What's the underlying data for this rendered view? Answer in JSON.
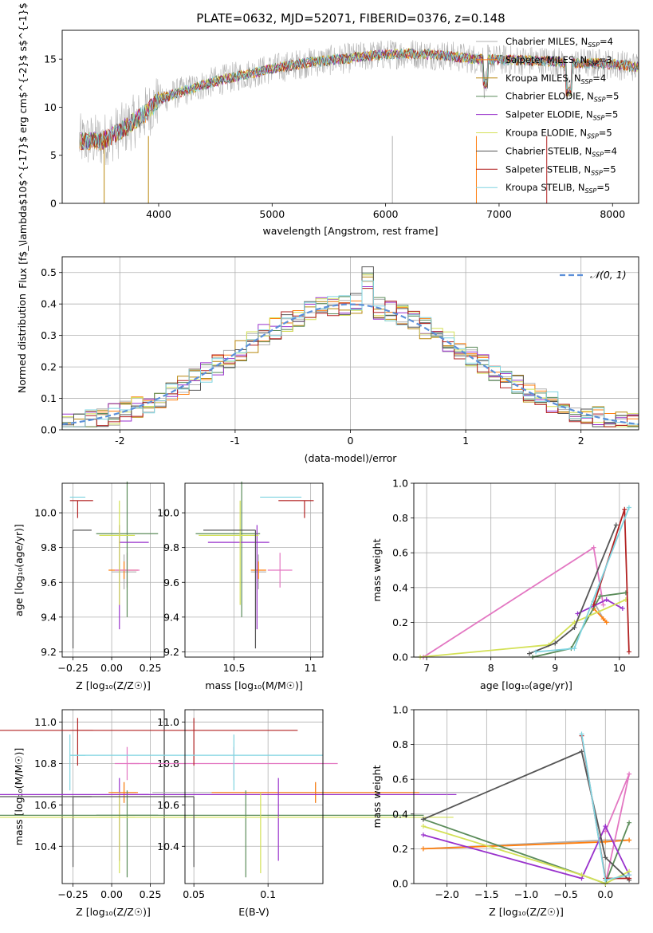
{
  "figure": {
    "title": "PLATE=0632, MJD=52071, FIBERID=0376, z=0.148"
  },
  "chart_data": [
    {
      "panel": "spectrum",
      "type": "line",
      "xlabel": "wavelength [Angstrom, rest frame]",
      "ylabel": "Flux [f$_\\lambda$10$^{-17}$ erg cm$^{-2}$ s$^{-1}$ A$^{-1}$]",
      "ylabel_parts": [
        "Flux [f",
        "λ",
        "10",
        "−17",
        " erg cm",
        "−2",
        " s",
        "−1",
        " A",
        "−1",
        "]"
      ],
      "xlim": [
        3150,
        8230
      ],
      "ylim": [
        0,
        18
      ],
      "xticks": [
        4000,
        5000,
        6000,
        7000,
        8000
      ],
      "yticks": [
        0,
        5,
        10,
        15
      ],
      "legend_position": "top-right",
      "series": [
        {
          "name": "Chabrier MILES, N_SSP=4",
          "label_main": "Chabrier MILES, N",
          "label_sub": "SSP",
          "label_tail": "=4",
          "color": "#b0b0b0"
        },
        {
          "name": "Salpeter MILES, N_SSP=3",
          "label_main": "Salpeter MILES, N",
          "label_sub": "SSP",
          "label_tail": "=3",
          "color": "#ff7f0e"
        },
        {
          "name": "Kroupa MILES, N_SSP=4",
          "label_main": "Kroupa MILES, N",
          "label_sub": "SSP",
          "label_tail": "=4",
          "color": "#b8860b"
        },
        {
          "name": "Chabrier ELODIE, N_SSP=5",
          "label_main": "Chabrier ELODIE, N",
          "label_sub": "SSP",
          "label_tail": "=5",
          "color": "#5b8c5a"
        },
        {
          "name": "Salpeter ELODIE, N_SSP=5",
          "label_main": "Salpeter ELODIE, N",
          "label_sub": "SSP",
          "label_tail": "=5",
          "color": "#9932cc"
        },
        {
          "name": "Kroupa ELODIE, N_SSP=5",
          "label_main": "Kroupa ELODIE, N",
          "label_sub": "SSP",
          "label_tail": "=5",
          "color": "#d4e157"
        },
        {
          "name": "Chabrier STELIB, N_SSP=4",
          "label_main": "Chabrier STELIB, N",
          "label_sub": "SSP",
          "label_tail": "=4",
          "color": "#555555"
        },
        {
          "name": "Salpeter STELIB, N_SSP=5",
          "label_main": "Salpeter STELIB, N",
          "label_sub": "SSP",
          "label_tail": "=5",
          "color": "#b22222"
        },
        {
          "name": "Kroupa STELIB, N_SSP=5",
          "label_main": "Kroupa STELIB, N",
          "label_sub": "SSP",
          "label_tail": "=5",
          "color": "#7fd4e0"
        }
      ],
      "continuum_x": [
        3300,
        3500,
        3700,
        3900,
        4000,
        4200,
        4500,
        4800,
        5000,
        5300,
        5600,
        5900,
        6200,
        6500,
        6800,
        7100,
        7400,
        7700,
        8000,
        8200
      ],
      "continuum_y": [
        6.5,
        6.5,
        7.8,
        9.5,
        10.8,
        11.6,
        12.7,
        13.5,
        14.0,
        14.6,
        15.0,
        15.4,
        15.6,
        15.4,
        15.0,
        14.9,
        14.8,
        14.6,
        14.5,
        14.2
      ],
      "data_x_range": [
        3300,
        8230
      ]
    },
    {
      "panel": "residuals",
      "type": "histogram",
      "xlabel": "(data-model)/error",
      "ylabel": "Normed distribution",
      "xlim": [
        -2.5,
        2.5
      ],
      "ylim": [
        0,
        0.55
      ],
      "xticks": [
        -2,
        -1,
        0,
        1,
        2
      ],
      "yticks": [
        0.0,
        0.1,
        0.2,
        0.3,
        0.4,
        0.5
      ],
      "legend_position": "top-right",
      "gaussian_label": "𝒩(0, 1)",
      "gaussian_color": "#5b8fd9",
      "bin_edges_start": -2.5,
      "bin_width": 0.1
    },
    {
      "panel": "age-Z",
      "type": "errorbar",
      "xlabel": "Z [log₁₀(Z/Z☉)]",
      "ylabel": "age  [log₁₀(age/yr)]",
      "xlim": [
        -0.32,
        0.34
      ],
      "ylim": [
        9.17,
        10.17
      ],
      "xticks": [
        -0.25,
        0.0,
        0.25
      ],
      "xticklabels": [
        "−0.25",
        "0.00",
        "0.25"
      ],
      "yticks": [
        9.2,
        9.4,
        9.6,
        9.8,
        10.0
      ]
    },
    {
      "panel": "age-mass",
      "type": "errorbar",
      "xlabel": "mass [log₁₀(M/M☉)]",
      "ylabel": "",
      "xlim": [
        10.18,
        11.08
      ],
      "ylim": [
        9.17,
        10.17
      ],
      "xticks": [
        10.5,
        11.0
      ],
      "yticks": [
        9.2,
        9.4,
        9.6,
        9.8,
        10.0
      ]
    },
    {
      "panel": "weight-age",
      "type": "line",
      "xlabel": "age  [log₁₀(age/yr)]",
      "ylabel": "mass weight",
      "xlim": [
        6.8,
        10.3
      ],
      "ylim": [
        0,
        1.0
      ],
      "xticks": [
        7,
        8,
        9,
        10
      ],
      "yticks": [
        0.0,
        0.2,
        0.4,
        0.6,
        0.8,
        1.0
      ]
    },
    {
      "panel": "mass-Z",
      "type": "errorbar",
      "xlabel": "Z [log₁₀(Z/Z☉)]",
      "ylabel": "mass [log₁₀(M/M☉)]",
      "xlim": [
        -0.32,
        0.34
      ],
      "ylim": [
        10.22,
        11.06
      ],
      "xticks": [
        -0.25,
        0.0,
        0.25
      ],
      "xticklabels": [
        "−0.25",
        "0.00",
        "0.25"
      ],
      "yticks": [
        10.4,
        10.6,
        10.8,
        11.0
      ]
    },
    {
      "panel": "mass-ebv",
      "type": "errorbar",
      "xlabel": "E(B-V)",
      "ylabel": "",
      "xlim": [
        0.044,
        0.137
      ],
      "ylim": [
        10.22,
        11.06
      ],
      "xticks": [
        0.05,
        0.1
      ],
      "yticks": [
        10.4,
        10.6,
        10.8,
        11.0
      ]
    },
    {
      "panel": "weight-Z",
      "type": "line",
      "xlabel": "Z [log₁₀(Z/Z☉)]",
      "ylabel": "mass weight",
      "xlim": [
        -2.42,
        0.42
      ],
      "ylim": [
        0,
        1.0
      ],
      "xticks": [
        -2.0,
        -1.5,
        -1.0,
        -0.5,
        0.0
      ],
      "xticklabels": [
        "−2.0",
        "−1.5",
        "−1.0",
        "−0.5",
        "0.0"
      ],
      "yticks": [
        0.0,
        0.2,
        0.4,
        0.6,
        0.8,
        1.0
      ]
    }
  ],
  "fits": [
    {
      "color": "#b0b0b0",
      "Z": 0.08,
      "Zerr": [
        0.08,
        0.08
      ],
      "age": 9.66,
      "ageerr": [
        0.1,
        0.1
      ],
      "mass": 10.66,
      "masserr": [
        0.05,
        0.05
      ],
      "ebv": 0.132,
      "ebverr": [
        0.11,
        0.11
      ],
      "w_age": [
        [
          9.6,
          0.32
        ],
        [
          9.75,
          0.22
        ],
        [
          9.8,
          0.2
        ]
      ],
      "w_Z": [
        [
          -2.3,
          0.2
        ],
        [
          0.0,
          0.25
        ],
        [
          0.3,
          0.25
        ]
      ]
    },
    {
      "color": "#ff7f0e",
      "Z": 0.08,
      "Zerr": [
        0.1,
        0.09
      ],
      "age": 9.67,
      "ageerr": [
        0.05,
        0.05
      ],
      "mass": 10.66,
      "masserr": [
        0.05,
        0.05
      ],
      "ebv": 0.132,
      "ebverr": [
        0.07,
        0.07
      ],
      "w_age": [
        [
          9.6,
          0.28
        ],
        [
          9.75,
          0.22
        ],
        [
          9.8,
          0.2
        ]
      ],
      "w_Z": [
        [
          -2.3,
          0.2
        ],
        [
          0.0,
          0.24
        ],
        [
          0.3,
          0.25
        ]
      ]
    },
    {
      "color": "#e377c2",
      "Z": 0.1,
      "Zerr": [
        0.08,
        0.08
      ],
      "age": 9.67,
      "ageerr": [
        0.1,
        0.1
      ],
      "mass": 10.8,
      "masserr": [
        0.08,
        0.08
      ],
      "ebv": 0.077,
      "ebverr": [
        0.07,
        0.07
      ],
      "w_age": [
        [
          6.95,
          0.0
        ],
        [
          9.6,
          0.63
        ],
        [
          9.75,
          0.3
        ]
      ],
      "w_Z": [
        [
          0.0,
          0.0
        ],
        [
          0.3,
          0.63
        ],
        [
          0.0,
          0.3
        ]
      ]
    },
    {
      "color": "#5b8c5a",
      "Z": 0.1,
      "Zerr": [
        0.2,
        0.2
      ],
      "age": 9.88,
      "ageerr": [
        0.48,
        0.3
      ],
      "mass": 10.55,
      "masserr": [
        0.3,
        0.12
      ],
      "ebv": 0.085,
      "ebverr": [
        0.25,
        0.12
      ],
      "w_age": [
        [
          8.65,
          0.0
        ],
        [
          9.25,
          0.05
        ],
        [
          9.7,
          0.35
        ],
        [
          10.1,
          0.37
        ]
      ],
      "w_Z": [
        [
          -2.3,
          0.37
        ],
        [
          -0.3,
          0.05
        ],
        [
          0.0,
          0.0
        ],
        [
          0.3,
          0.35
        ]
      ]
    },
    {
      "color": "#9932cc",
      "Z": 0.05,
      "Zerr": [
        0.0,
        0.19
      ],
      "age": 9.83,
      "ageerr": [
        0.5,
        0.1
      ],
      "mass": 10.65,
      "masserr": [
        0.32,
        0.08
      ],
      "ebv": 0.107,
      "ebverr": [
        0.32,
        0.12
      ],
      "w_age": [
        [
          9.35,
          0.25
        ],
        [
          9.8,
          0.33
        ],
        [
          10.05,
          0.28
        ]
      ],
      "w_Z": [
        [
          -2.3,
          0.28
        ],
        [
          -0.3,
          0.03
        ],
        [
          0.0,
          0.33
        ],
        [
          0.3,
          0.05
        ]
      ]
    },
    {
      "color": "#d4e157",
      "Z": 0.05,
      "Zerr": [
        0.13,
        0.1
      ],
      "age": 9.87,
      "ageerr": [
        0.4,
        0.2
      ],
      "mass": 10.54,
      "masserr": [
        0.27,
        0.12
      ],
      "ebv": 0.095,
      "ebverr": [
        0.21,
        0.13
      ],
      "w_age": [
        [
          6.9,
          0.0
        ],
        [
          8.9,
          0.07
        ],
        [
          9.3,
          0.2
        ],
        [
          10.1,
          0.33
        ]
      ],
      "w_Z": [
        [
          -2.3,
          0.33
        ],
        [
          -0.3,
          0.05
        ],
        [
          0.0,
          0.0
        ],
        [
          0.3,
          0.07
        ]
      ]
    },
    {
      "color": "#555555",
      "Z": -0.25,
      "Zerr": [
        0.0,
        0.12
      ],
      "age": 9.9,
      "ageerr": [
        0.68,
        0.0
      ],
      "mass": 10.64,
      "masserr": [
        0.34,
        0.0
      ],
      "ebv": 0.05,
      "ebverr": [
        0.34,
        0.0
      ],
      "w_age": [
        [
          8.6,
          0.02
        ],
        [
          9.0,
          0.08
        ],
        [
          9.3,
          0.17
        ],
        [
          9.95,
          0.76
        ]
      ],
      "w_Z": [
        [
          -2.3,
          0.37
        ],
        [
          -0.3,
          0.76
        ],
        [
          0.0,
          0.15
        ],
        [
          0.3,
          0.02
        ]
      ]
    },
    {
      "color": "#b22222",
      "Z": -0.22,
      "Zerr": [
        0.05,
        0.1
      ],
      "age": 10.07,
      "ageerr": [
        0.1,
        0.0
      ],
      "mass": 10.96,
      "masserr": [
        0.17,
        0.06
      ],
      "ebv": 0.05,
      "ebverr": [
        0.19,
        0.07
      ],
      "w_age": [
        [
          9.6,
          0.3
        ],
        [
          10.08,
          0.85
        ],
        [
          10.15,
          0.03
        ]
      ],
      "w_Z": [
        [
          -0.3,
          0.85
        ],
        [
          0.0,
          0.03
        ],
        [
          0.3,
          0.03
        ]
      ]
    },
    {
      "color": "#7fd4e0",
      "Z": -0.27,
      "Zerr": [
        0.0,
        0.1
      ],
      "age": 10.09,
      "ageerr": [
        0.0,
        0.0
      ],
      "mass": 10.84,
      "masserr": [
        0.17,
        0.1
      ],
      "ebv": 0.077,
      "ebverr": [
        0.11,
        0.06
      ],
      "w_age": [
        [
          8.7,
          0.03
        ],
        [
          9.3,
          0.05
        ],
        [
          10.15,
          0.86
        ]
      ],
      "w_Z": [
        [
          -0.3,
          0.86
        ],
        [
          0.0,
          0.02
        ],
        [
          0.3,
          0.05
        ]
      ]
    }
  ]
}
